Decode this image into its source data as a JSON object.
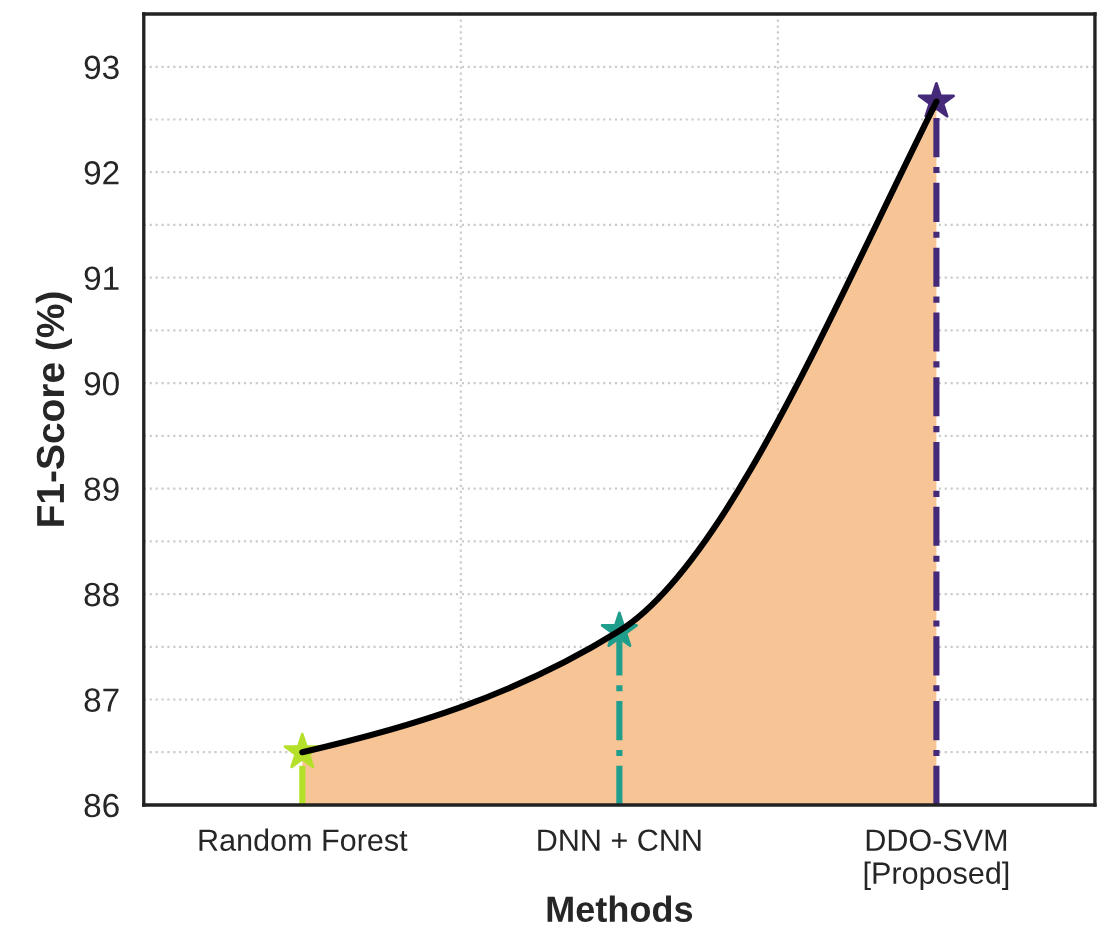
{
  "chart_data": {
    "type": "area",
    "xlabel": "Methods",
    "ylabel": "F1-Score (%)",
    "categories": [
      "Random Forest",
      "DNN + CNN",
      "DDO-SVM\n[Proposed]"
    ],
    "series": [
      {
        "color": "#f7c495",
        "values": [
          86.5,
          87.65,
          92.67
        ]
      },
      {
        "type": "scatter",
        "marker": "star",
        "colors": [
          "#b5e02a",
          "#1f9e8c",
          "#452a7a"
        ],
        "values": [
          86.5,
          87.65,
          92.67
        ]
      }
    ],
    "ylim": [
      86,
      93.5
    ],
    "yticks": [
      86,
      {
        "value": 86.5,
        "label": null
      },
      87,
      {
        "value": 87.5,
        "label": null
      },
      88,
      {
        "value": 88.5,
        "label": null
      },
      89,
      {
        "value": 89.5,
        "label": null
      },
      90,
      {
        "value": 90.5,
        "label": null
      },
      91,
      {
        "value": 91.5,
        "label": null
      },
      92,
      {
        "value": 92.5,
        "label": null
      },
      93
    ],
    "grid": true
  }
}
